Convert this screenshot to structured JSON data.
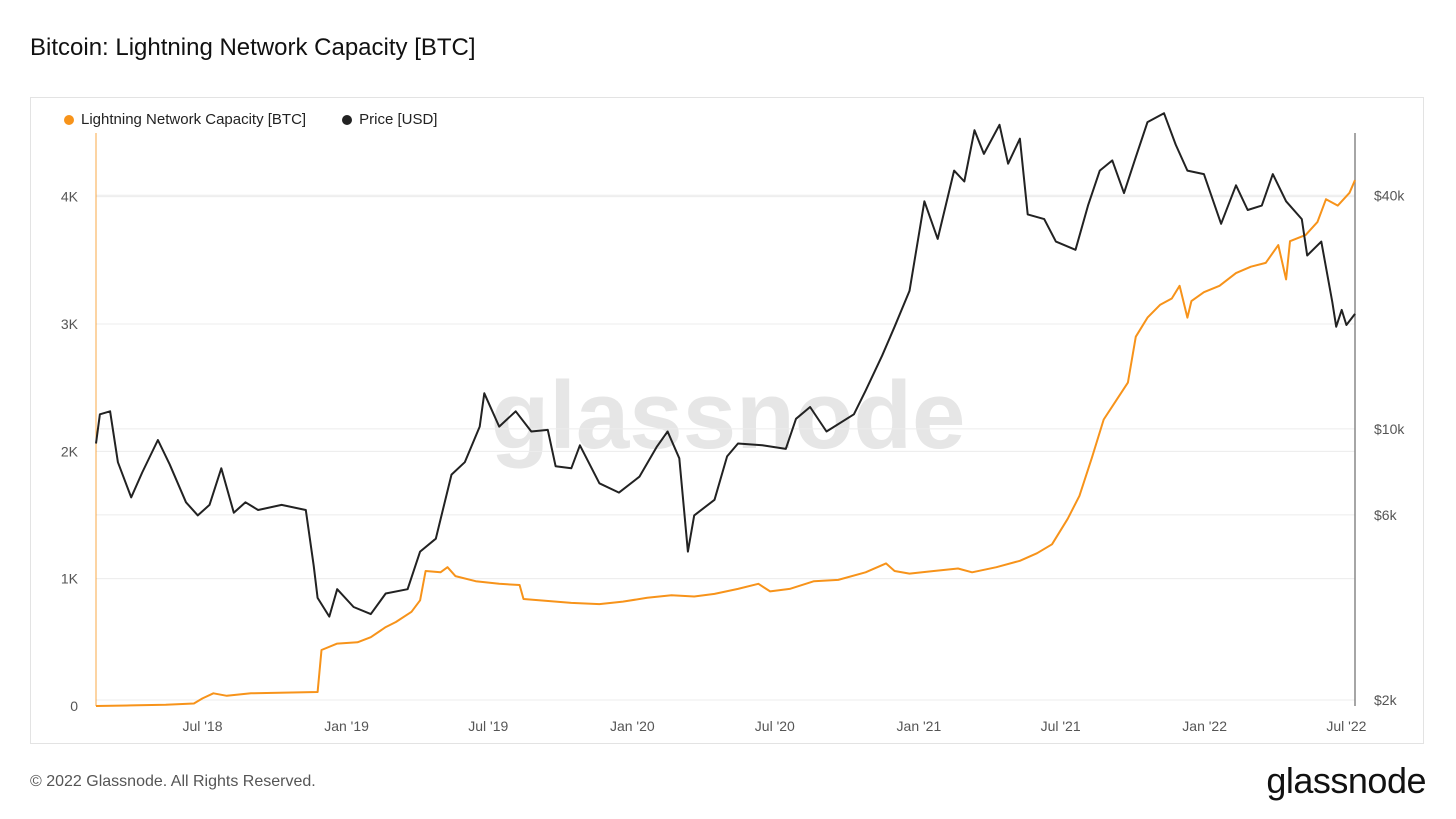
{
  "title": "Bitcoin: Lightning Network Capacity [BTC]",
  "footer": "© 2022 Glassnode. All Rights Reserved.",
  "brand": "glassnode",
  "watermark": "glassnode",
  "colors": {
    "capacity": "#f7931a",
    "price": "#222222",
    "grid": "#ececec",
    "axis_text": "#555555"
  },
  "legend": [
    {
      "label": "Lightning Network Capacity [BTC]",
      "color": "#f7931a"
    },
    {
      "label": "Price [USD]",
      "color": "#222222"
    }
  ],
  "chart_data": {
    "type": "line",
    "title": "Bitcoin: Lightning Network Capacity [BTC]",
    "x_ticks": [
      "Jul '18",
      "Jan '19",
      "Jul '19",
      "Jan '20",
      "Jul '20",
      "Jan '21",
      "Jul '21",
      "Jan '22",
      "Jul '22"
    ],
    "x_range": [
      "2018-02-15",
      "2022-07-12"
    ],
    "y_left": {
      "ticks": [
        "0",
        "1K",
        "2K",
        "3K",
        "4K"
      ],
      "range": [
        0,
        4500
      ],
      "scale": "linear"
    },
    "y_right": {
      "ticks": [
        "$2k",
        "$6k",
        "$10k",
        "$40k"
      ],
      "range": [
        2000,
        60000
      ],
      "scale": "log"
    },
    "grid": true,
    "legend_position": "top-left",
    "series": [
      {
        "name": "Lightning Network Capacity [BTC]",
        "axis": "left",
        "color": "#f7931a",
        "points": [
          [
            "2018-02-15",
            0
          ],
          [
            "2018-04-01",
            5
          ],
          [
            "2018-05-15",
            10
          ],
          [
            "2018-06-20",
            20
          ],
          [
            "2018-07-01",
            60
          ],
          [
            "2018-07-15",
            100
          ],
          [
            "2018-08-01",
            80
          ],
          [
            "2018-09-01",
            100
          ],
          [
            "2018-10-15",
            105
          ],
          [
            "2018-11-25",
            110
          ],
          [
            "2018-11-30",
            440
          ],
          [
            "2018-12-20",
            490
          ],
          [
            "2019-01-15",
            500
          ],
          [
            "2019-02-01",
            540
          ],
          [
            "2019-02-20",
            620
          ],
          [
            "2019-03-05",
            660
          ],
          [
            "2019-03-25",
            740
          ],
          [
            "2019-04-05",
            830
          ],
          [
            "2019-04-12",
            1060
          ],
          [
            "2019-05-01",
            1050
          ],
          [
            "2019-05-10",
            1090
          ],
          [
            "2019-05-20",
            1020
          ],
          [
            "2019-06-15",
            980
          ],
          [
            "2019-07-15",
            960
          ],
          [
            "2019-08-10",
            950
          ],
          [
            "2019-08-15",
            840
          ],
          [
            "2019-10-15",
            810
          ],
          [
            "2019-11-20",
            800
          ],
          [
            "2019-12-20",
            820
          ],
          [
            "2020-01-20",
            850
          ],
          [
            "2020-02-20",
            870
          ],
          [
            "2020-03-20",
            860
          ],
          [
            "2020-04-15",
            880
          ],
          [
            "2020-05-15",
            920
          ],
          [
            "2020-06-10",
            960
          ],
          [
            "2020-06-25",
            900
          ],
          [
            "2020-07-20",
            920
          ],
          [
            "2020-08-20",
            980
          ],
          [
            "2020-09-20",
            990
          ],
          [
            "2020-10-25",
            1050
          ],
          [
            "2020-11-20",
            1120
          ],
          [
            "2020-12-01",
            1060
          ],
          [
            "2020-12-20",
            1040
          ],
          [
            "2021-01-20",
            1060
          ],
          [
            "2021-02-20",
            1080
          ],
          [
            "2021-03-10",
            1050
          ],
          [
            "2021-04-10",
            1090
          ],
          [
            "2021-05-10",
            1140
          ],
          [
            "2021-06-01",
            1200
          ],
          [
            "2021-06-20",
            1270
          ],
          [
            "2021-07-10",
            1470
          ],
          [
            "2021-07-25",
            1650
          ],
          [
            "2021-08-10",
            1950
          ],
          [
            "2021-08-25",
            2250
          ],
          [
            "2021-09-10",
            2400
          ],
          [
            "2021-09-25",
            2540
          ],
          [
            "2021-10-05",
            2900
          ],
          [
            "2021-10-20",
            3050
          ],
          [
            "2021-11-05",
            3150
          ],
          [
            "2021-11-20",
            3200
          ],
          [
            "2021-11-30",
            3300
          ],
          [
            "2021-12-10",
            3050
          ],
          [
            "2021-12-15",
            3180
          ],
          [
            "2021-12-31",
            3250
          ],
          [
            "2022-01-20",
            3300
          ],
          [
            "2022-02-10",
            3400
          ],
          [
            "2022-03-01",
            3450
          ],
          [
            "2022-03-20",
            3480
          ],
          [
            "2022-04-05",
            3620
          ],
          [
            "2022-04-15",
            3350
          ],
          [
            "2022-04-20",
            3650
          ],
          [
            "2022-05-10",
            3700
          ],
          [
            "2022-05-25",
            3800
          ],
          [
            "2022-06-05",
            3980
          ],
          [
            "2022-06-20",
            3930
          ],
          [
            "2022-07-05",
            4030
          ],
          [
            "2022-07-12",
            4130
          ]
        ]
      },
      {
        "name": "Price [USD]",
        "axis": "right",
        "color": "#222222",
        "points": [
          [
            "2018-02-15",
            9500
          ],
          [
            "2018-02-20",
            11300
          ],
          [
            "2018-03-05",
            11500
          ],
          [
            "2018-03-15",
            8500
          ],
          [
            "2018-04-01",
            6900
          ],
          [
            "2018-04-15",
            8000
          ],
          [
            "2018-05-05",
            9700
          ],
          [
            "2018-05-20",
            8400
          ],
          [
            "2018-06-10",
            6700
          ],
          [
            "2018-06-25",
            6200
          ],
          [
            "2018-07-10",
            6600
          ],
          [
            "2018-07-25",
            8200
          ],
          [
            "2018-08-10",
            6300
          ],
          [
            "2018-08-25",
            6700
          ],
          [
            "2018-09-10",
            6400
          ],
          [
            "2018-10-10",
            6600
          ],
          [
            "2018-11-10",
            6400
          ],
          [
            "2018-11-20",
            4600
          ],
          [
            "2018-11-25",
            3800
          ],
          [
            "2018-12-10",
            3400
          ],
          [
            "2018-12-20",
            4000
          ],
          [
            "2019-01-10",
            3600
          ],
          [
            "2019-02-01",
            3450
          ],
          [
            "2019-02-20",
            3900
          ],
          [
            "2019-03-20",
            4000
          ],
          [
            "2019-04-05",
            5000
          ],
          [
            "2019-04-25",
            5400
          ],
          [
            "2019-05-15",
            7900
          ],
          [
            "2019-06-01",
            8500
          ],
          [
            "2019-06-20",
            10500
          ],
          [
            "2019-06-26",
            12800
          ],
          [
            "2019-07-15",
            10500
          ],
          [
            "2019-08-05",
            11500
          ],
          [
            "2019-08-25",
            10200
          ],
          [
            "2019-09-15",
            10300
          ],
          [
            "2019-09-25",
            8300
          ],
          [
            "2019-10-15",
            8200
          ],
          [
            "2019-10-26",
            9400
          ],
          [
            "2019-11-20",
            7500
          ],
          [
            "2019-12-15",
            7100
          ],
          [
            "2020-01-10",
            7800
          ],
          [
            "2020-02-01",
            9300
          ],
          [
            "2020-02-15",
            10200
          ],
          [
            "2020-03-01",
            8700
          ],
          [
            "2020-03-12",
            5000
          ],
          [
            "2020-03-20",
            6200
          ],
          [
            "2020-04-15",
            6800
          ],
          [
            "2020-05-01",
            8800
          ],
          [
            "2020-05-15",
            9500
          ],
          [
            "2020-06-15",
            9400
          ],
          [
            "2020-07-15",
            9200
          ],
          [
            "2020-07-28",
            11000
          ],
          [
            "2020-08-15",
            11800
          ],
          [
            "2020-09-05",
            10200
          ],
          [
            "2020-10-10",
            11300
          ],
          [
            "2020-10-25",
            13000
          ],
          [
            "2020-11-15",
            16000
          ],
          [
            "2020-12-01",
            19000
          ],
          [
            "2020-12-20",
            23500
          ],
          [
            "2021-01-08",
            40000
          ],
          [
            "2021-01-25",
            32000
          ],
          [
            "2021-02-15",
            48000
          ],
          [
            "2021-02-28",
            45000
          ],
          [
            "2021-03-13",
            61000
          ],
          [
            "2021-03-25",
            53000
          ],
          [
            "2021-04-14",
            63000
          ],
          [
            "2021-04-25",
            50000
          ],
          [
            "2021-05-10",
            58000
          ],
          [
            "2021-05-20",
            37000
          ],
          [
            "2021-06-10",
            36000
          ],
          [
            "2021-06-25",
            31500
          ],
          [
            "2021-07-20",
            30000
          ],
          [
            "2021-08-05",
            39000
          ],
          [
            "2021-08-20",
            48000
          ],
          [
            "2021-09-05",
            51000
          ],
          [
            "2021-09-20",
            42000
          ],
          [
            "2021-10-05",
            52000
          ],
          [
            "2021-10-20",
            64000
          ],
          [
            "2021-11-10",
            67500
          ],
          [
            "2021-11-25",
            56000
          ],
          [
            "2021-12-10",
            48000
          ],
          [
            "2021-12-31",
            47000
          ],
          [
            "2022-01-22",
            35000
          ],
          [
            "2022-02-10",
            44000
          ],
          [
            "2022-02-25",
            38000
          ],
          [
            "2022-03-15",
            39000
          ],
          [
            "2022-03-29",
            47000
          ],
          [
            "2022-04-15",
            40000
          ],
          [
            "2022-05-05",
            36000
          ],
          [
            "2022-05-12",
            29000
          ],
          [
            "2022-05-30",
            31500
          ],
          [
            "2022-06-13",
            22000
          ],
          [
            "2022-06-18",
            19000
          ],
          [
            "2022-06-25",
            21000
          ],
          [
            "2022-07-01",
            19200
          ],
          [
            "2022-07-12",
            20500
          ]
        ]
      }
    ]
  }
}
